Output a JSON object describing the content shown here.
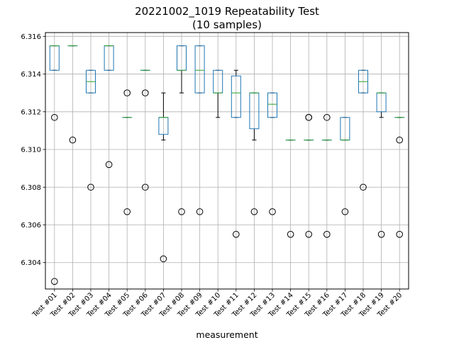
{
  "chart_data": {
    "type": "box",
    "title": "20221002_1019 Repeatability Test",
    "subtitle": "(10 samples)",
    "xlabel": "measurement",
    "ylabel": "",
    "ylim": [
      6.3026,
      6.3162
    ],
    "yticks": [
      "6.304",
      "6.306",
      "6.308",
      "6.310",
      "6.312",
      "6.314",
      "6.316"
    ],
    "grid": true,
    "colors": {
      "box": "#1f77b4",
      "median": "#2ca02c",
      "whisker": "#000000",
      "flier": "#000000",
      "grid": "#b0b0b0"
    },
    "categories": [
      "Test #01",
      "Test #02",
      "Test #03",
      "Test #04",
      "Test #05",
      "Test #06",
      "Test #07",
      "Test #08",
      "Test #09",
      "Test #10",
      "Test #11",
      "Test #12",
      "Test #13",
      "Test #14",
      "Test #15",
      "Test #16",
      "Test #17",
      "Test #18",
      "Test #19",
      "Test #20"
    ],
    "boxes": [
      {
        "whislo": 6.3142,
        "q1": 6.3142,
        "med": 6.3155,
        "q3": 6.3155,
        "whishi": 6.3155,
        "fliers": [
          6.3117,
          6.303
        ]
      },
      {
        "whislo": 6.3155,
        "q1": 6.3155,
        "med": 6.3155,
        "q3": 6.3155,
        "whishi": 6.3155,
        "fliers": [
          6.3105
        ]
      },
      {
        "whislo": 6.313,
        "q1": 6.313,
        "med": 6.3136,
        "q3": 6.3142,
        "whishi": 6.3142,
        "fliers": [
          6.308
        ]
      },
      {
        "whislo": 6.3142,
        "q1": 6.3142,
        "med": 6.3155,
        "q3": 6.3155,
        "whishi": 6.3155,
        "fliers": [
          6.3092
        ]
      },
      {
        "whislo": 6.3117,
        "q1": 6.3117,
        "med": 6.3117,
        "q3": 6.3117,
        "whishi": 6.3117,
        "fliers": [
          6.313,
          6.3067
        ]
      },
      {
        "whislo": 6.3142,
        "q1": 6.3142,
        "med": 6.3142,
        "q3": 6.3142,
        "whishi": 6.3142,
        "fliers": [
          6.313,
          6.308
        ]
      },
      {
        "whislo": 6.3105,
        "q1": 6.3108,
        "med": 6.3117,
        "q3": 6.3117,
        "whishi": 6.313,
        "fliers": [
          6.3042
        ]
      },
      {
        "whislo": 6.313,
        "q1": 6.3142,
        "med": 6.3142,
        "q3": 6.3155,
        "whishi": 6.3155,
        "fliers": [
          6.3067
        ]
      },
      {
        "whislo": 6.313,
        "q1": 6.313,
        "med": 6.3142,
        "q3": 6.3155,
        "whishi": 6.3155,
        "fliers": [
          6.3067
        ]
      },
      {
        "whislo": 6.3117,
        "q1": 6.313,
        "med": 6.313,
        "q3": 6.3142,
        "whishi": 6.3142,
        "fliers": []
      },
      {
        "whislo": 6.3117,
        "q1": 6.3117,
        "med": 6.313,
        "q3": 6.3139,
        "whishi": 6.3142,
        "fliers": [
          6.3055
        ]
      },
      {
        "whislo": 6.3105,
        "q1": 6.3111,
        "med": 6.313,
        "q3": 6.313,
        "whishi": 6.313,
        "fliers": [
          6.3067
        ]
      },
      {
        "whislo": 6.3117,
        "q1": 6.3117,
        "med": 6.3124,
        "q3": 6.313,
        "whishi": 6.313,
        "fliers": [
          6.3067
        ]
      },
      {
        "whislo": 6.3105,
        "q1": 6.3105,
        "med": 6.3105,
        "q3": 6.3105,
        "whishi": 6.3105,
        "fliers": [
          6.3055
        ]
      },
      {
        "whislo": 6.3105,
        "q1": 6.3105,
        "med": 6.3105,
        "q3": 6.3105,
        "whishi": 6.3105,
        "fliers": [
          6.3117,
          6.3117,
          6.3055
        ]
      },
      {
        "whislo": 6.3105,
        "q1": 6.3105,
        "med": 6.3105,
        "q3": 6.3105,
        "whishi": 6.3105,
        "fliers": [
          6.3117,
          6.3055
        ]
      },
      {
        "whislo": 6.3105,
        "q1": 6.3105,
        "med": 6.3105,
        "q3": 6.3117,
        "whishi": 6.3117,
        "fliers": [
          6.3067
        ]
      },
      {
        "whislo": 6.313,
        "q1": 6.313,
        "med": 6.3136,
        "q3": 6.3142,
        "whishi": 6.3142,
        "fliers": [
          6.308
        ]
      },
      {
        "whislo": 6.3117,
        "q1": 6.312,
        "med": 6.313,
        "q3": 6.313,
        "whishi": 6.313,
        "fliers": [
          6.3055
        ]
      },
      {
        "whislo": 6.3117,
        "q1": 6.3117,
        "med": 6.3117,
        "q3": 6.3117,
        "whishi": 6.3117,
        "fliers": [
          6.3105,
          6.3055
        ]
      }
    ]
  }
}
